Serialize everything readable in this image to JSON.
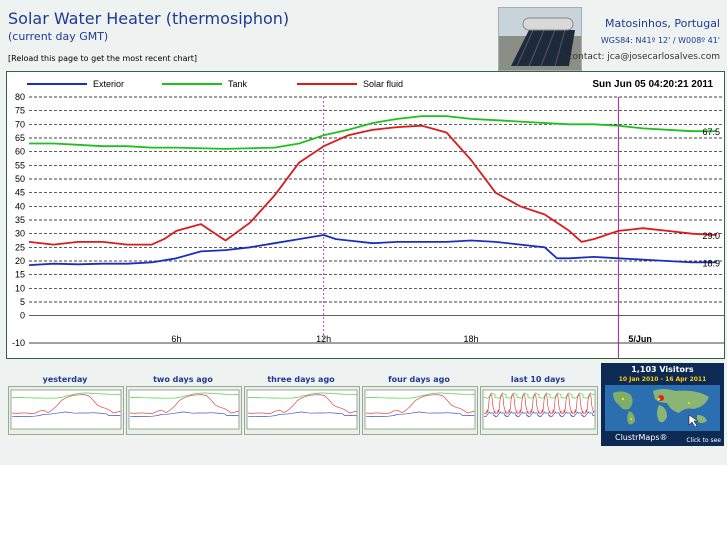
{
  "header": {
    "title": "Solar Water Heater (thermosiphon)",
    "subtitle": "(current day GMT)",
    "reload_text": "[Reload this page to get the most recent chart]",
    "location": "Matosinhos, Portugal",
    "coordinates": "WGS84: N41º 12' / W008º 41'",
    "contact": "contact: jca@josecarlosalves.com"
  },
  "chart_data": {
    "type": "line",
    "timestamp": "Sun Jun 05 04:20:21 2011",
    "ylim": [
      -10,
      80
    ],
    "y_ticks": [
      -10,
      0,
      5,
      10,
      15,
      20,
      25,
      30,
      35,
      40,
      45,
      50,
      55,
      60,
      65,
      70,
      75,
      80
    ],
    "x_range_hours": [
      0,
      28.3
    ],
    "x_ticks": [
      {
        "label": "6h",
        "hour": 6
      },
      {
        "label": "12h",
        "hour": 12
      },
      {
        "label": "18h",
        "hour": 18
      },
      {
        "label": "5/Jun",
        "hour": 24
      }
    ],
    "grid": true,
    "legend_position": "top-left",
    "series": [
      {
        "name": "Exterior",
        "color": "#1a2fbf",
        "end_label": "18.9",
        "points": [
          [
            0,
            18.5
          ],
          [
            1,
            19
          ],
          [
            2,
            18.8
          ],
          [
            3,
            19
          ],
          [
            4,
            19
          ],
          [
            5,
            19.5
          ],
          [
            6,
            21
          ],
          [
            7,
            23.5
          ],
          [
            8,
            24
          ],
          [
            9,
            25
          ],
          [
            10,
            26.5
          ],
          [
            11,
            28
          ],
          [
            12,
            29.5
          ],
          [
            12.5,
            28
          ],
          [
            13,
            27.5
          ],
          [
            14,
            26.5
          ],
          [
            15,
            27
          ],
          [
            16,
            27
          ],
          [
            17,
            27
          ],
          [
            18,
            27.5
          ],
          [
            19,
            27
          ],
          [
            20,
            26
          ],
          [
            21,
            25
          ],
          [
            21.5,
            21
          ],
          [
            22,
            21
          ],
          [
            23,
            21.5
          ],
          [
            24,
            21
          ],
          [
            25,
            20.5
          ],
          [
            26,
            20
          ],
          [
            27,
            19.5
          ],
          [
            28,
            19.5
          ]
        ]
      },
      {
        "name": "Tank",
        "color": "#1fbf1f",
        "end_label": "67.5",
        "points": [
          [
            0,
            63
          ],
          [
            1,
            63
          ],
          [
            2,
            62.5
          ],
          [
            3,
            62
          ],
          [
            4,
            62
          ],
          [
            5,
            61.5
          ],
          [
            6,
            61.5
          ],
          [
            8,
            61
          ],
          [
            10,
            61.5
          ],
          [
            11,
            63
          ],
          [
            12,
            66
          ],
          [
            13,
            68
          ],
          [
            14,
            70.5
          ],
          [
            15,
            72
          ],
          [
            16,
            73
          ],
          [
            17,
            73
          ],
          [
            18,
            72
          ],
          [
            19,
            71.5
          ],
          [
            20,
            71
          ],
          [
            21,
            70.5
          ],
          [
            22,
            70
          ],
          [
            23,
            70
          ],
          [
            24,
            69.5
          ],
          [
            25,
            68.5
          ],
          [
            26,
            68
          ],
          [
            27,
            67.5
          ],
          [
            28,
            67.5
          ]
        ]
      },
      {
        "name": "Solar fluid",
        "color": "#d91c1c",
        "end_label": "29.0",
        "points": [
          [
            0,
            27
          ],
          [
            1,
            26
          ],
          [
            2,
            27
          ],
          [
            3,
            27
          ],
          [
            4,
            26
          ],
          [
            5,
            26
          ],
          [
            5.5,
            28
          ],
          [
            6,
            31
          ],
          [
            7,
            33.5
          ],
          [
            8,
            27.5
          ],
          [
            9,
            34
          ],
          [
            10,
            44
          ],
          [
            11,
            56
          ],
          [
            12,
            62
          ],
          [
            13,
            66
          ],
          [
            14,
            68
          ],
          [
            15,
            69
          ],
          [
            16,
            69.5
          ],
          [
            17,
            67
          ],
          [
            18,
            57
          ],
          [
            19,
            45
          ],
          [
            20,
            40
          ],
          [
            21,
            37
          ],
          [
            22,
            31
          ],
          [
            22.5,
            27
          ],
          [
            23,
            28
          ],
          [
            24,
            31
          ],
          [
            25,
            32
          ],
          [
            26,
            31
          ],
          [
            27,
            30
          ],
          [
            28,
            29.5
          ]
        ]
      }
    ]
  },
  "history": {
    "thumbnails": [
      {
        "label": "yesterday"
      },
      {
        "label": "two days ago"
      },
      {
        "label": "three days ago"
      },
      {
        "label": "four days ago"
      },
      {
        "label": "last 10 days"
      }
    ]
  },
  "clustrmaps": {
    "visitors": "1,103 Visitors",
    "range": "10 Jan 2010 - 16 Apr 2011",
    "brand": "ClustrMaps®",
    "click": "Click to see"
  }
}
